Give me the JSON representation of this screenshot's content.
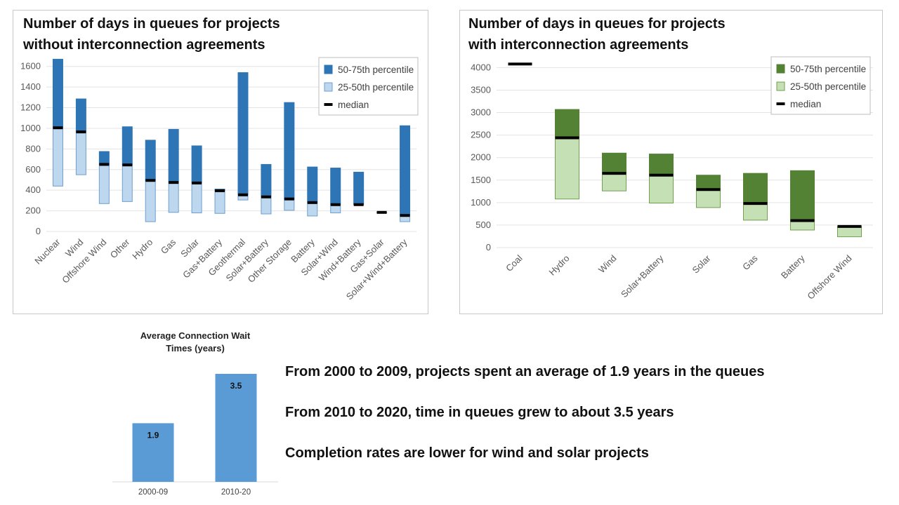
{
  "chart_data": [
    {
      "type": "bar",
      "subtype": "floating-percentile-range",
      "title": "Number of days in queues for projects without interconnection agreements",
      "title_lines": [
        "Number of days in queues for projects",
        "without interconnection agreements"
      ],
      "categories": [
        "Nuclear",
        "Wind",
        "Offshore Wind",
        "Other",
        "Hydro",
        "Gas",
        "Solar",
        "Gas+Battery",
        "Geothermal",
        "Solar+Battery",
        "Other Storage",
        "Battery",
        "Solar+Wind",
        "Wind+Battery",
        "Gas+Solar",
        "Solar+Wind+Battery"
      ],
      "series": [
        {
          "name": "25-50th percentile",
          "low": [
            440,
            550,
            270,
            290,
            95,
            185,
            180,
            175,
            305,
            170,
            205,
            150,
            180,
            260,
            180,
            95
          ],
          "high": [
            1005,
            965,
            650,
            645,
            495,
            475,
            470,
            395,
            355,
            335,
            315,
            280,
            260,
            260,
            185,
            155
          ]
        },
        {
          "name": "50-75th percentile",
          "low": [
            1005,
            965,
            650,
            645,
            495,
            475,
            470,
            395,
            355,
            335,
            315,
            280,
            260,
            260,
            185,
            155
          ],
          "high": [
            1670,
            1285,
            775,
            1015,
            885,
            990,
            830,
            410,
            1540,
            650,
            1250,
            625,
            615,
            575,
            185,
            1025
          ]
        },
        {
          "name": "median",
          "values": [
            1005,
            965,
            650,
            645,
            495,
            475,
            470,
            395,
            355,
            335,
            315,
            280,
            260,
            260,
            185,
            155
          ]
        }
      ],
      "yticks": [
        0,
        200,
        400,
        600,
        800,
        1000,
        1200,
        1400,
        1600
      ],
      "ylim": [
        0,
        1700
      ],
      "legend": [
        "50-75th percentile",
        "25-50th percentile",
        "median"
      ],
      "legend_position": "top-right",
      "grid": true,
      "colors": {
        "upper": "#2e75b6",
        "lower": "#bdd7ee",
        "lower_edge": "#6f9fcf",
        "median": "#000000"
      }
    },
    {
      "type": "bar",
      "subtype": "floating-percentile-range",
      "title": "Number of days in queues for projects with interconnection agreements",
      "title_lines": [
        "Number of days in queues for projects",
        "with interconnection agreements"
      ],
      "categories": [
        "Coal",
        "Hydro",
        "Wind",
        "Solar+Battery",
        "Solar",
        "Gas",
        "Battery",
        "Offshore Wind"
      ],
      "series": [
        {
          "name": "25-50th percentile",
          "low": [
            4080,
            1080,
            1260,
            990,
            890,
            610,
            390,
            240
          ],
          "high": [
            4080,
            2440,
            1650,
            1610,
            1290,
            980,
            600,
            470
          ]
        },
        {
          "name": "50-75th percentile",
          "low": [
            4080,
            2440,
            1650,
            1610,
            1290,
            980,
            600,
            470
          ],
          "high": [
            4080,
            3070,
            2100,
            2080,
            1610,
            1650,
            1710,
            470
          ]
        },
        {
          "name": "median",
          "values": [
            4080,
            2440,
            1650,
            1610,
            1290,
            980,
            600,
            470
          ]
        }
      ],
      "yticks": [
        0,
        500,
        1000,
        1500,
        2000,
        2500,
        3000,
        3500,
        4000
      ],
      "ylim": [
        0,
        4100
      ],
      "legend": [
        "50-75th percentile",
        "25-50th percentile",
        "median"
      ],
      "legend_position": "top-right",
      "grid": true,
      "colors": {
        "upper": "#548235",
        "lower": "#c5e0b4",
        "lower_edge": "#70a050",
        "median": "#000000"
      }
    },
    {
      "type": "bar",
      "title": "Average Connection Wait Times (years)",
      "title_lines": [
        "Average Connection Wait",
        "Times (years)"
      ],
      "categories": [
        "2000-09",
        "2010-20"
      ],
      "values": [
        1.9,
        3.5
      ],
      "value_labels": [
        "1.9",
        "3.5"
      ],
      "ylim": [
        0,
        3.5
      ],
      "grid": false,
      "colors": {
        "bar": "#5b9bd5"
      }
    }
  ],
  "statements": [
    "From 2000 to 2009, projects spent an average of 1.9 years in the queues",
    "From 2010 to 2020, time in queues grew to about 3.5 years",
    "Completion rates are lower for wind and solar projects"
  ]
}
